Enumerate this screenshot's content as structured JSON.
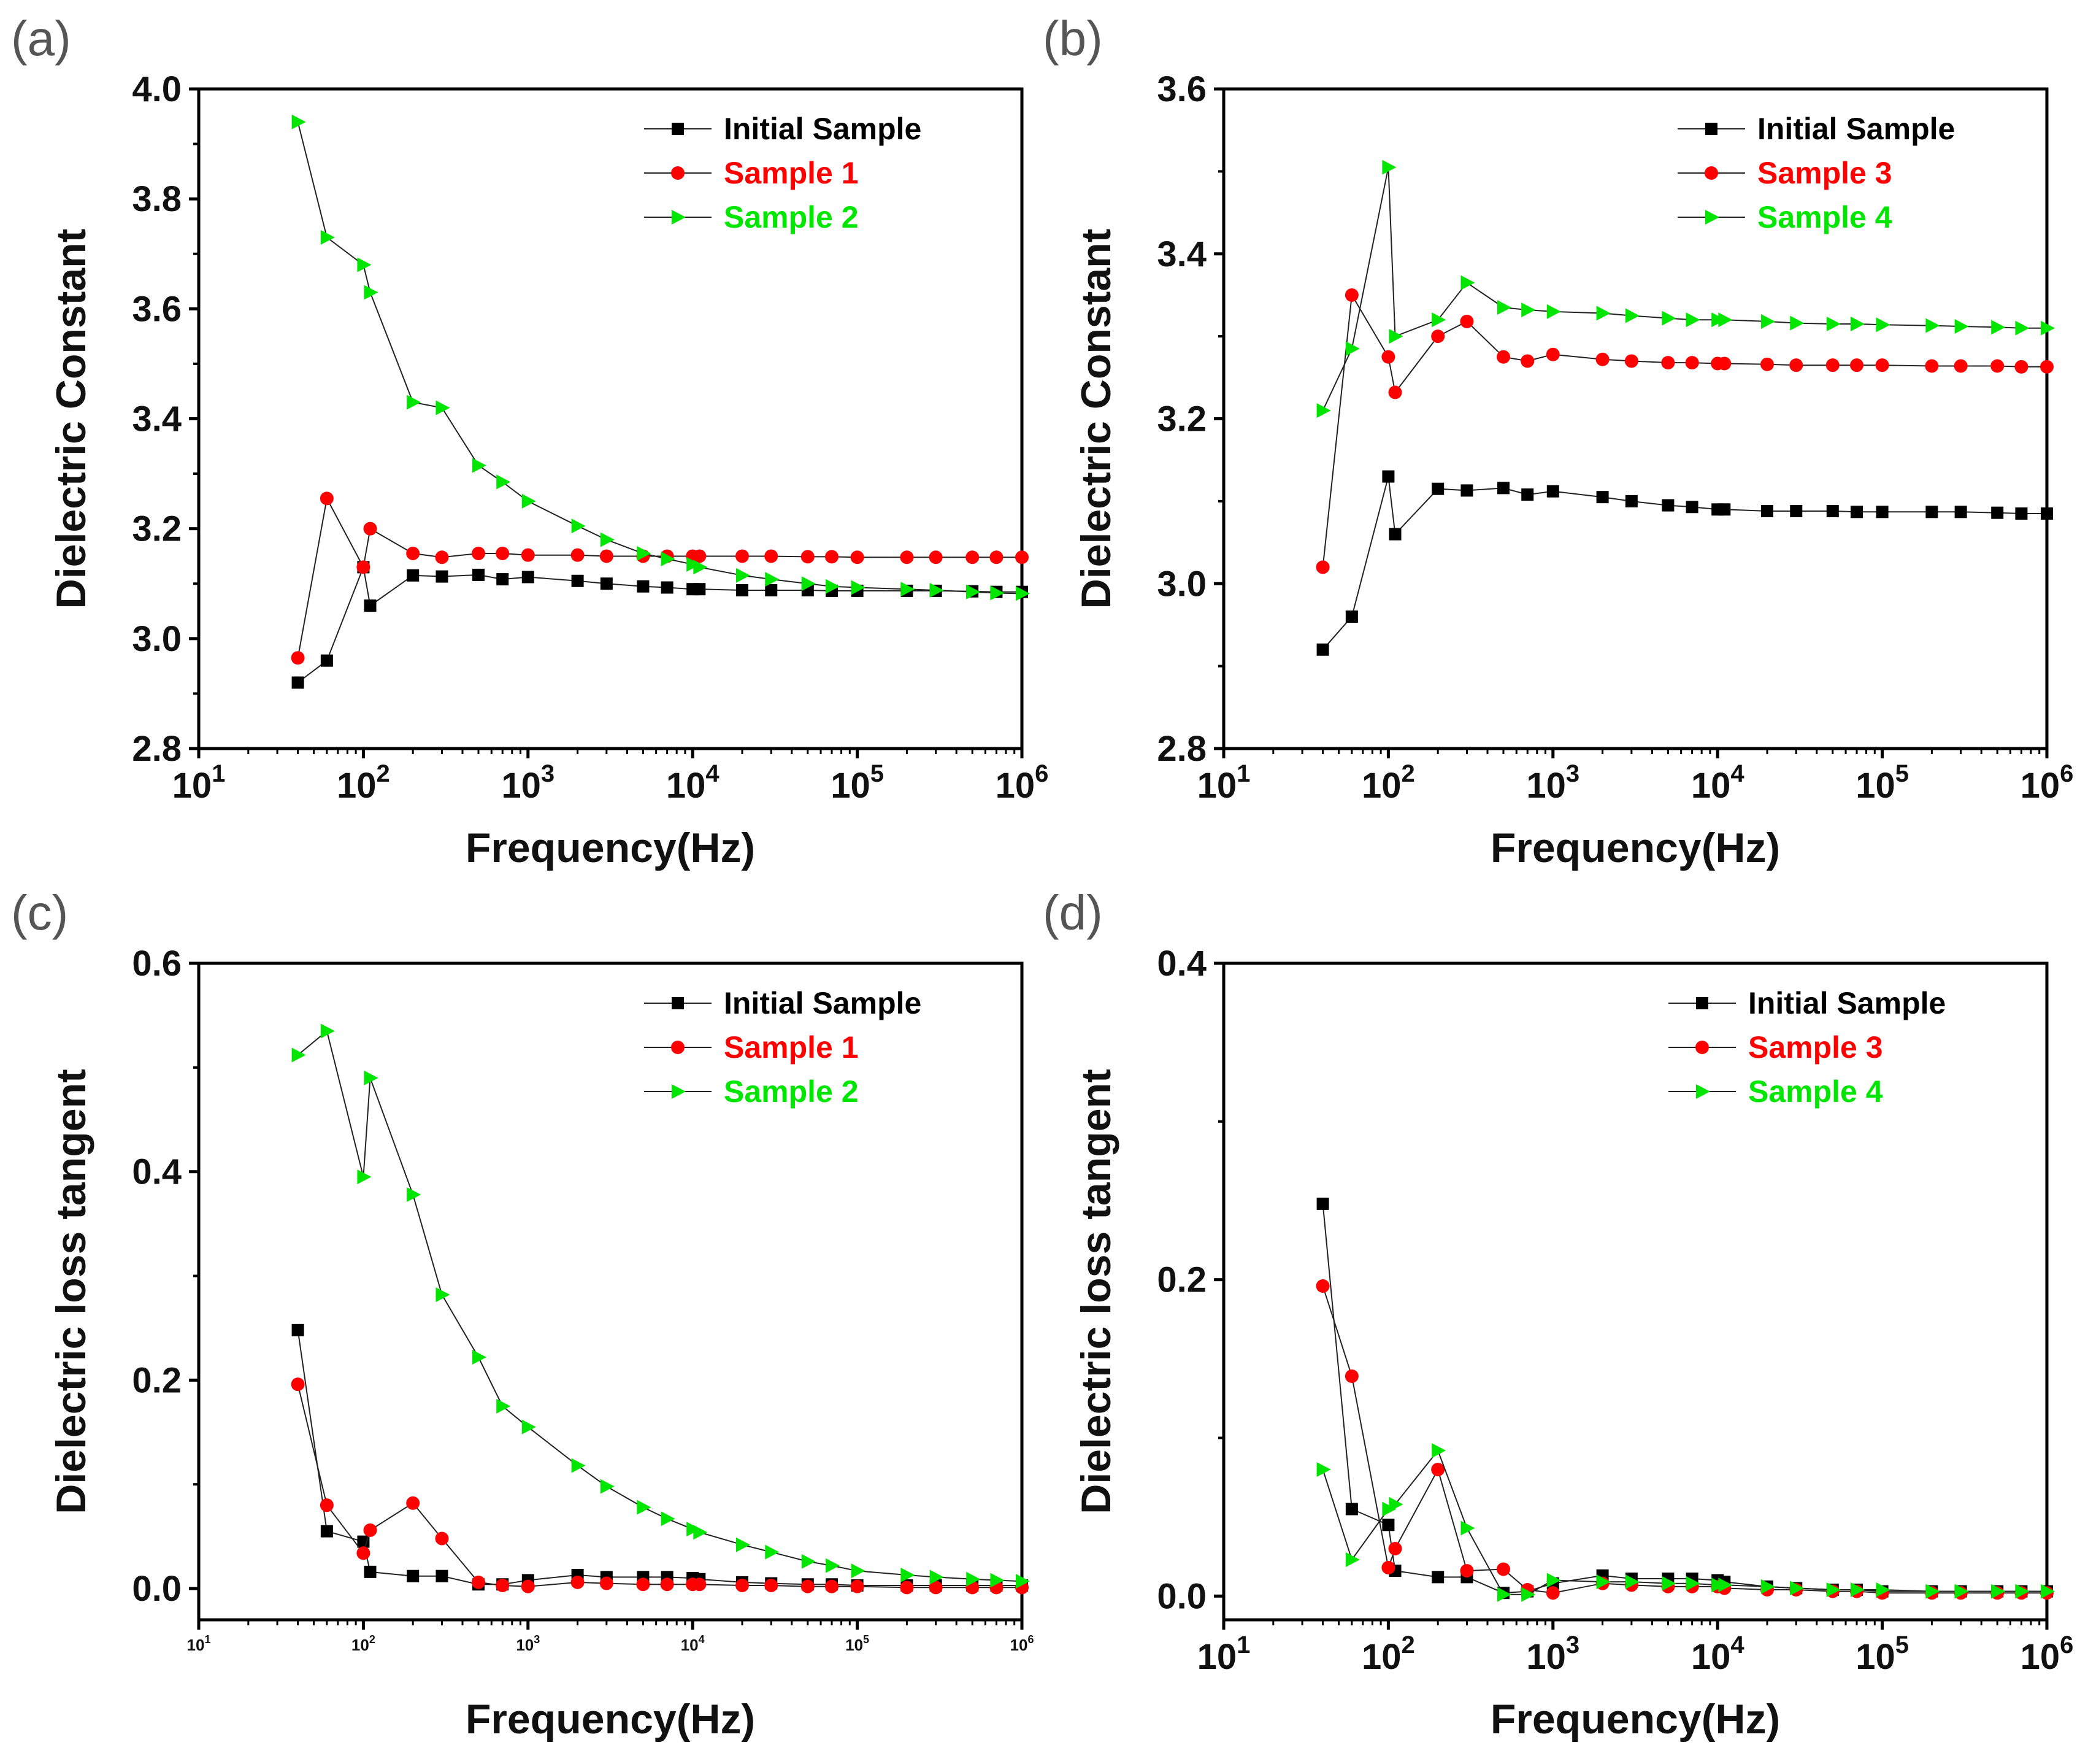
{
  "figure": {
    "colors": {
      "Initial Sample": "#000000",
      "red_series": "#ff0000",
      "green_series": "#00e600"
    }
  },
  "chart_data": [
    {
      "id": "a",
      "panel_label": "(a)",
      "type": "line",
      "xscale": "log",
      "xlim": [
        10,
        1000000
      ],
      "ylim": [
        2.8,
        4.0
      ],
      "yticks": [
        "2.8",
        "3.0",
        "3.2",
        "3.4",
        "3.6",
        "3.8",
        "4.0"
      ],
      "xticks": [
        {
          "base": "10",
          "exp": "1"
        },
        {
          "base": "10",
          "exp": "2"
        },
        {
          "base": "10",
          "exp": "3"
        },
        {
          "base": "10",
          "exp": "4"
        },
        {
          "base": "10",
          "exp": "5"
        },
        {
          "base": "10",
          "exp": "6"
        }
      ],
      "xlabel": "Frequency(Hz)",
      "ylabel": "Dielectric Constant",
      "legend_position": "top-right",
      "x": [
        40,
        60,
        100,
        110,
        200,
        300,
        500,
        700,
        1000,
        2000,
        3000,
        5000,
        7000,
        10000,
        11000,
        20000,
        30000,
        50000,
        70000,
        100000,
        200000,
        300000,
        500000,
        700000,
        1000000
      ],
      "series": [
        {
          "name": "Initial Sample",
          "color": "#000000",
          "marker": "square",
          "values": [
            2.92,
            2.96,
            3.13,
            3.06,
            3.115,
            3.113,
            3.116,
            3.108,
            3.112,
            3.105,
            3.1,
            3.095,
            3.093,
            3.09,
            3.09,
            3.088,
            3.088,
            3.088,
            3.087,
            3.087,
            3.087,
            3.087,
            3.086,
            3.085,
            3.085
          ]
        },
        {
          "name": "Sample 1",
          "color": "#ff0000",
          "marker": "circle",
          "values": [
            2.965,
            3.255,
            3.13,
            3.2,
            3.155,
            3.148,
            3.155,
            3.155,
            3.152,
            3.152,
            3.15,
            3.15,
            3.15,
            3.15,
            3.15,
            3.15,
            3.15,
            3.149,
            3.149,
            3.148,
            3.148,
            3.148,
            3.148,
            3.148,
            3.148
          ]
        },
        {
          "name": "Sample 2",
          "color": "#00e600",
          "marker": "triangle",
          "values": [
            3.94,
            3.73,
            3.68,
            3.63,
            3.43,
            3.42,
            3.315,
            3.285,
            3.25,
            3.205,
            3.18,
            3.155,
            3.145,
            3.135,
            3.13,
            3.115,
            3.108,
            3.1,
            3.095,
            3.093,
            3.09,
            3.088,
            3.085,
            3.083,
            3.082
          ]
        }
      ]
    },
    {
      "id": "b",
      "panel_label": "(b)",
      "type": "line",
      "xscale": "log",
      "xlim": [
        10,
        1000000
      ],
      "ylim": [
        2.8,
        3.6
      ],
      "yticks": [
        "2.8",
        "3.0",
        "3.2",
        "3.4",
        "3.6"
      ],
      "xticks": [
        {
          "base": "10",
          "exp": "1"
        },
        {
          "base": "10",
          "exp": "2"
        },
        {
          "base": "10",
          "exp": "3"
        },
        {
          "base": "10",
          "exp": "4"
        },
        {
          "base": "10",
          "exp": "5"
        },
        {
          "base": "10",
          "exp": "6"
        }
      ],
      "xlabel": "Frequency(Hz)",
      "ylabel": "Dielectric Constant",
      "legend_position": "top-right",
      "x": [
        40,
        60,
        100,
        110,
        200,
        300,
        500,
        700,
        1000,
        2000,
        3000,
        5000,
        7000,
        10000,
        11000,
        20000,
        30000,
        50000,
        70000,
        100000,
        200000,
        300000,
        500000,
        700000,
        1000000
      ],
      "series": [
        {
          "name": "Initial Sample",
          "color": "#000000",
          "marker": "square",
          "values": [
            2.92,
            2.96,
            3.13,
            3.06,
            3.115,
            3.113,
            3.116,
            3.108,
            3.112,
            3.105,
            3.1,
            3.095,
            3.093,
            3.09,
            3.09,
            3.088,
            3.088,
            3.088,
            3.087,
            3.087,
            3.087,
            3.087,
            3.086,
            3.085,
            3.085
          ]
        },
        {
          "name": "Sample 3",
          "color": "#ff0000",
          "marker": "circle",
          "values": [
            3.02,
            3.35,
            3.275,
            3.232,
            3.3,
            3.318,
            3.275,
            3.27,
            3.278,
            3.272,
            3.27,
            3.268,
            3.268,
            3.267,
            3.267,
            3.266,
            3.265,
            3.265,
            3.265,
            3.265,
            3.264,
            3.264,
            3.264,
            3.263,
            3.263
          ]
        },
        {
          "name": "Sample 4",
          "color": "#00e600",
          "marker": "triangle",
          "values": [
            3.21,
            3.285,
            3.505,
            3.3,
            3.32,
            3.365,
            3.335,
            3.332,
            3.33,
            3.328,
            3.325,
            3.322,
            3.32,
            3.32,
            3.32,
            3.318,
            3.316,
            3.315,
            3.315,
            3.314,
            3.313,
            3.312,
            3.311,
            3.31,
            3.31
          ]
        }
      ]
    },
    {
      "id": "c",
      "panel_label": "(c)",
      "type": "line",
      "xscale": "log",
      "xlim": [
        10,
        1000000
      ],
      "ylim": [
        -0.03,
        0.6
      ],
      "yticks": [
        "0.0",
        "0.2",
        "0.4",
        "0.6"
      ],
      "ytick_values": [
        0.0,
        0.2,
        0.4,
        0.6
      ],
      "xticks": [
        {
          "base": "10",
          "exp": "1"
        },
        {
          "base": "10",
          "exp": "2"
        },
        {
          "base": "10",
          "exp": "3"
        },
        {
          "base": "10",
          "exp": "4"
        },
        {
          "base": "10",
          "exp": "5"
        },
        {
          "base": "10",
          "exp": "6"
        }
      ],
      "small_xticks": true,
      "xlabel": "Frequency(Hz)",
      "ylabel": "Dielectric loss tangent",
      "legend_position": "top-right",
      "x": [
        40,
        60,
        100,
        110,
        200,
        300,
        500,
        700,
        1000,
        2000,
        3000,
        5000,
        7000,
        10000,
        11000,
        20000,
        30000,
        50000,
        70000,
        100000,
        200000,
        300000,
        500000,
        700000,
        1000000
      ],
      "series": [
        {
          "name": "Initial Sample",
          "color": "#000000",
          "marker": "square",
          "values": [
            0.248,
            0.055,
            0.045,
            0.016,
            0.012,
            0.012,
            0.004,
            0.004,
            0.008,
            0.013,
            0.011,
            0.011,
            0.011,
            0.01,
            0.009,
            0.006,
            0.005,
            0.004,
            0.004,
            0.003,
            0.003,
            0.003,
            0.003,
            0.003,
            0.003
          ]
        },
        {
          "name": "Sample 1",
          "color": "#ff0000",
          "marker": "circle",
          "values": [
            0.196,
            0.08,
            0.034,
            0.056,
            0.082,
            0.048,
            0.006,
            0.003,
            0.002,
            0.006,
            0.005,
            0.004,
            0.004,
            0.004,
            0.004,
            0.003,
            0.003,
            0.002,
            0.002,
            0.002,
            0.001,
            0.001,
            0.001,
            0.001,
            0.001
          ]
        },
        {
          "name": "Sample 2",
          "color": "#00e600",
          "marker": "triangle",
          "values": [
            0.512,
            0.535,
            0.395,
            0.49,
            0.378,
            0.282,
            0.222,
            0.175,
            0.155,
            0.118,
            0.098,
            0.078,
            0.067,
            0.057,
            0.054,
            0.042,
            0.035,
            0.026,
            0.022,
            0.017,
            0.013,
            0.011,
            0.009,
            0.008,
            0.007
          ]
        }
      ]
    },
    {
      "id": "d",
      "panel_label": "(d)",
      "type": "line",
      "xscale": "log",
      "xlim": [
        10,
        1000000
      ],
      "ylim": [
        -0.015,
        0.4
      ],
      "yticks": [
        "0.0",
        "0.2",
        "0.4"
      ],
      "ytick_values": [
        0.0,
        0.2,
        0.4
      ],
      "xticks": [
        {
          "base": "10",
          "exp": "1"
        },
        {
          "base": "10",
          "exp": "2"
        },
        {
          "base": "10",
          "exp": "3"
        },
        {
          "base": "10",
          "exp": "4"
        },
        {
          "base": "10",
          "exp": "5"
        },
        {
          "base": "10",
          "exp": "6"
        }
      ],
      "xlabel": "Frequency(Hz)",
      "ylabel": "Dielectric loss tangent",
      "legend_position": "top-right",
      "x": [
        40,
        60,
        100,
        110,
        200,
        300,
        500,
        700,
        1000,
        2000,
        3000,
        5000,
        7000,
        10000,
        11000,
        20000,
        30000,
        50000,
        70000,
        100000,
        200000,
        300000,
        500000,
        700000,
        1000000
      ],
      "series": [
        {
          "name": "Initial Sample",
          "color": "#000000",
          "marker": "square",
          "values": [
            0.248,
            0.055,
            0.045,
            0.016,
            0.012,
            0.012,
            0.002,
            0.003,
            0.008,
            0.013,
            0.011,
            0.011,
            0.011,
            0.01,
            0.009,
            0.006,
            0.005,
            0.004,
            0.004,
            0.003,
            0.003,
            0.003,
            0.003,
            0.003,
            0.003
          ]
        },
        {
          "name": "Sample 3",
          "color": "#ff0000",
          "marker": "circle",
          "values": [
            0.196,
            0.139,
            0.018,
            0.03,
            0.08,
            0.016,
            0.017,
            0.004,
            0.002,
            0.008,
            0.007,
            0.006,
            0.006,
            0.006,
            0.005,
            0.004,
            0.004,
            0.003,
            0.003,
            0.002,
            0.002,
            0.002,
            0.002,
            0.002,
            0.002
          ]
        },
        {
          "name": "Sample 4",
          "color": "#00e600",
          "marker": "triangle",
          "values": [
            0.08,
            0.023,
            0.055,
            0.058,
            0.092,
            0.043,
            0.001,
            0.001,
            0.01,
            0.009,
            0.009,
            0.008,
            0.008,
            0.007,
            0.007,
            0.006,
            0.005,
            0.004,
            0.004,
            0.004,
            0.003,
            0.003,
            0.003,
            0.003,
            0.003
          ]
        }
      ]
    }
  ]
}
